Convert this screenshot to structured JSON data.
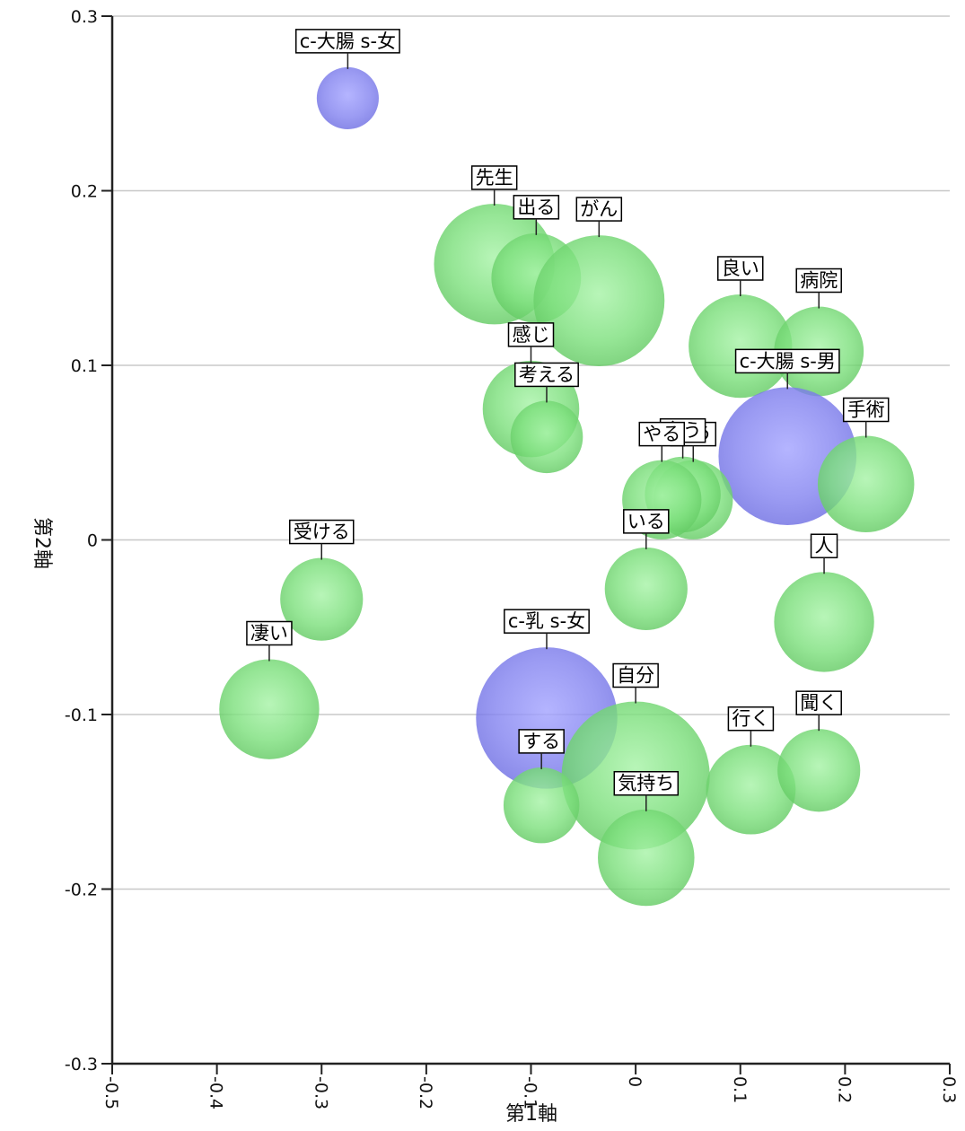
{
  "chart_data": {
    "type": "scatter",
    "title": "",
    "xlabel": "第1軸",
    "ylabel": "第2軸",
    "xlim": [
      -0.5,
      0.3
    ],
    "ylim": [
      -0.3,
      0.3
    ],
    "x_ticks": [
      "-0.5",
      "-0.4",
      "-0.3",
      "-0.2",
      "-0.1",
      "0",
      "0.1",
      "0.2",
      "0.3"
    ],
    "y_ticks": [
      "0.3",
      "0.2",
      "0.1",
      "0",
      "-0.1",
      "-0.2",
      "-0.3"
    ],
    "grid": true,
    "colors": {
      "word": "#7ee07e",
      "category": "#8585f0",
      "grid": "#c8c8c8",
      "axis": "#222222"
    },
    "points": [
      {
        "label": "c-大腸 s-女",
        "x": -0.275,
        "y": 0.253,
        "size": 3.6,
        "kind": "category"
      },
      {
        "label": "先生",
        "x": -0.135,
        "y": 0.158,
        "size": 7.0,
        "kind": "word"
      },
      {
        "label": "出る",
        "x": -0.095,
        "y": 0.15,
        "size": 5.2,
        "kind": "word"
      },
      {
        "label": "がん",
        "x": -0.035,
        "y": 0.137,
        "size": 7.6,
        "kind": "word"
      },
      {
        "label": "良い",
        "x": 0.1,
        "y": 0.111,
        "size": 6.0,
        "kind": "word"
      },
      {
        "label": "病院",
        "x": 0.175,
        "y": 0.108,
        "size": 5.2,
        "kind": "word"
      },
      {
        "label": "感じ",
        "x": -0.1,
        "y": 0.075,
        "size": 5.6,
        "kind": "word"
      },
      {
        "label": "考える",
        "x": -0.085,
        "y": 0.059,
        "size": 4.2,
        "kind": "word"
      },
      {
        "label": "c-大腸 s-男",
        "x": 0.145,
        "y": 0.048,
        "size": 8.0,
        "kind": "category"
      },
      {
        "label": "手術",
        "x": 0.22,
        "y": 0.032,
        "size": 5.6,
        "kind": "word"
      },
      {
        "label": "思う",
        "x": 0.055,
        "y": 0.023,
        "size": 4.6,
        "kind": "word"
      },
      {
        "label": "言う",
        "x": 0.045,
        "y": 0.026,
        "size": 4.4,
        "kind": "word"
      },
      {
        "label": "やる",
        "x": 0.025,
        "y": 0.023,
        "size": 4.6,
        "kind": "word"
      },
      {
        "label": "いる",
        "x": 0.01,
        "y": -0.028,
        "size": 4.8,
        "kind": "word"
      },
      {
        "label": "人",
        "x": 0.18,
        "y": -0.047,
        "size": 5.8,
        "kind": "word"
      },
      {
        "label": "受ける",
        "x": -0.3,
        "y": -0.034,
        "size": 4.8,
        "kind": "word"
      },
      {
        "label": "凄い",
        "x": -0.35,
        "y": -0.097,
        "size": 5.8,
        "kind": "word"
      },
      {
        "label": "c-乳 s-女",
        "x": -0.085,
        "y": -0.102,
        "size": 8.2,
        "kind": "category"
      },
      {
        "label": "自分",
        "x": 0.0,
        "y": -0.135,
        "size": 8.6,
        "kind": "word"
      },
      {
        "label": "する",
        "x": -0.09,
        "y": -0.152,
        "size": 4.4,
        "kind": "word"
      },
      {
        "label": "行く",
        "x": 0.11,
        "y": -0.143,
        "size": 5.2,
        "kind": "word"
      },
      {
        "label": "聞く",
        "x": 0.175,
        "y": -0.132,
        "size": 4.8,
        "kind": "word"
      },
      {
        "label": "気持ち",
        "x": 0.01,
        "y": -0.182,
        "size": 5.6,
        "kind": "word"
      }
    ]
  }
}
